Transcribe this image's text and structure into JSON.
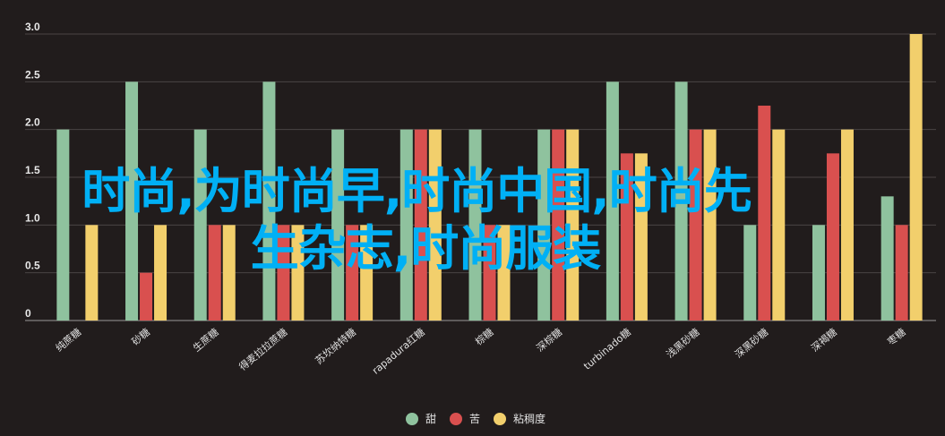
{
  "chart_data": {
    "type": "bar",
    "categories": [
      "纯蔗糖",
      "砂糖",
      "生蔗糖",
      "得麦拉拉蔗糖",
      "苏坎纳特糖",
      "rapadura红糖",
      "棕糖",
      "深棕糖",
      "turbinado糖",
      "浅黑砂糖",
      "深黑砂糖",
      "深褐糖",
      "枣糖"
    ],
    "series": [
      {
        "name": "甜",
        "color": "#8fc29e",
        "values": [
          2.0,
          2.5,
          2.0,
          2.5,
          2.0,
          2.0,
          2.0,
          2.0,
          2.5,
          2.5,
          1.0,
          1.0,
          1.3
        ]
      },
      {
        "name": "苦",
        "color": "#d9504f",
        "values": [
          0,
          0.5,
          1.0,
          1.0,
          1.0,
          2.0,
          1.0,
          2.0,
          1.75,
          2.0,
          2.25,
          1.75,
          1.0
        ]
      },
      {
        "name": "粘稠度",
        "color": "#f2cf6c",
        "values": [
          1.0,
          1.0,
          1.0,
          1.0,
          1.0,
          2.0,
          1.0,
          2.0,
          1.75,
          2.0,
          2.0,
          2.0,
          3.0
        ]
      }
    ],
    "yticks": [
      "0",
      "0.5",
      "1.0",
      "1.5",
      "2.0",
      "2.5",
      "3.0"
    ],
    "ylim": [
      0,
      3.0
    ],
    "grid": true,
    "legend": "bottom-center"
  },
  "overlay_text": {
    "line1": "时尚,为时尚早,时尚中国,时尚先",
    "line2": "生杂志,时尚服装"
  }
}
